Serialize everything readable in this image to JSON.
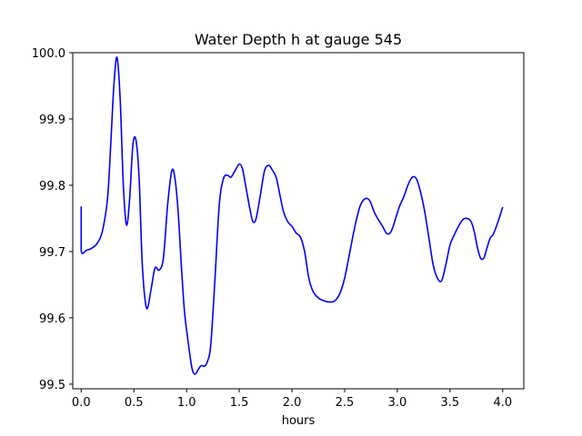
{
  "chart_data": {
    "type": "line",
    "title": "Water Depth h at gauge 545",
    "xlabel": "hours",
    "ylabel": "",
    "xlim": [
      -0.08,
      4.2
    ],
    "ylim": [
      99.493,
      100.0
    ],
    "x_ticks": [
      0.0,
      0.5,
      1.0,
      1.5,
      2.0,
      2.5,
      3.0,
      3.5,
      4.0
    ],
    "x_tick_labels": [
      "0.0",
      "0.5",
      "1.0",
      "1.5",
      "2.0",
      "2.5",
      "3.0",
      "3.5",
      "4.0"
    ],
    "y_ticks": [
      99.5,
      99.6,
      99.7,
      99.8,
      99.9,
      100.0
    ],
    "y_tick_labels": [
      "99.5",
      "99.6",
      "99.7",
      "99.8",
      "99.9",
      "100.0"
    ],
    "grid": false,
    "series": [
      {
        "color": "#0000ff",
        "x": [
          0.0,
          0.0,
          0.05,
          0.1,
          0.15,
          0.2,
          0.25,
          0.28,
          0.31,
          0.34,
          0.37,
          0.4,
          0.43,
          0.46,
          0.49,
          0.52,
          0.55,
          0.58,
          0.62,
          0.66,
          0.7,
          0.74,
          0.78,
          0.82,
          0.86,
          0.89,
          0.92,
          0.95,
          0.98,
          1.01,
          1.05,
          1.08,
          1.11,
          1.14,
          1.17,
          1.2,
          1.23,
          1.27,
          1.31,
          1.35,
          1.39,
          1.42,
          1.46,
          1.5,
          1.53,
          1.56,
          1.6,
          1.63,
          1.66,
          1.7,
          1.74,
          1.78,
          1.81,
          1.85,
          1.88,
          1.92,
          1.96,
          2.0,
          2.04,
          2.08,
          2.12,
          2.16,
          2.2,
          2.25,
          2.3,
          2.35,
          2.4,
          2.45,
          2.5,
          2.55,
          2.6,
          2.65,
          2.7,
          2.74,
          2.78,
          2.82,
          2.86,
          2.9,
          2.94,
          2.98,
          3.02,
          3.06,
          3.1,
          3.14,
          3.18,
          3.22,
          3.26,
          3.3,
          3.34,
          3.38,
          3.42,
          3.46,
          3.5,
          3.54,
          3.58,
          3.62,
          3.66,
          3.7,
          3.73,
          3.76,
          3.79,
          3.82,
          3.85,
          3.88,
          3.91,
          3.94,
          3.97,
          4.0
        ],
        "y": [
          99.768,
          99.702,
          99.702,
          99.705,
          99.712,
          99.73,
          99.78,
          99.86,
          99.95,
          99.993,
          99.93,
          99.8,
          99.74,
          99.78,
          99.86,
          99.868,
          99.81,
          99.68,
          99.615,
          99.64,
          99.675,
          99.672,
          99.69,
          99.77,
          99.822,
          99.81,
          99.76,
          99.68,
          99.61,
          99.57,
          99.525,
          99.515,
          99.522,
          99.528,
          99.527,
          99.535,
          99.56,
          99.66,
          99.77,
          99.81,
          99.815,
          99.812,
          99.822,
          99.832,
          99.825,
          99.8,
          99.765,
          99.745,
          99.75,
          99.785,
          99.822,
          99.83,
          99.824,
          99.812,
          99.79,
          99.76,
          99.745,
          99.738,
          99.728,
          99.722,
          99.7,
          99.66,
          99.64,
          99.63,
          99.626,
          99.624,
          99.625,
          99.635,
          99.66,
          99.7,
          99.74,
          99.77,
          99.78,
          99.776,
          99.76,
          99.748,
          99.738,
          99.727,
          99.73,
          99.748,
          99.768,
          99.782,
          99.8,
          99.812,
          99.81,
          99.79,
          99.76,
          99.72,
          99.68,
          99.66,
          99.656,
          99.68,
          99.71,
          99.725,
          99.738,
          99.748,
          99.75,
          99.745,
          99.73,
          99.706,
          99.69,
          99.69,
          99.705,
          99.72,
          99.726,
          99.738,
          99.752,
          99.767
        ]
      }
    ]
  }
}
